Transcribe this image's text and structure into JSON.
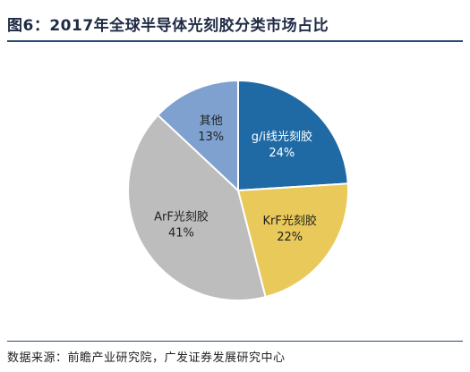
{
  "figure": {
    "title": "图6：2017年全球半导体光刻胶分类市场占比",
    "source": "数据来源：前瞻产业研究院，广发证券发展研究中心"
  },
  "chart_data": {
    "type": "pie",
    "title": "",
    "slices": [
      {
        "name": "g/i线光刻胶",
        "label": "24%",
        "value": 24,
        "color": "#1f6aa5",
        "text_color": "#ffffff"
      },
      {
        "name": "KrF光刻胶",
        "label": "22%",
        "value": 22,
        "color": "#e8c95a",
        "text_color": "#222222"
      },
      {
        "name": "ArF光刻胶",
        "label": "41%",
        "value": 41,
        "color": "#bdbdbd",
        "text_color": "#222222"
      },
      {
        "name": "其他",
        "label": "13%",
        "value": 13,
        "color": "#7fa1cf",
        "text_color": "#222222"
      }
    ]
  }
}
